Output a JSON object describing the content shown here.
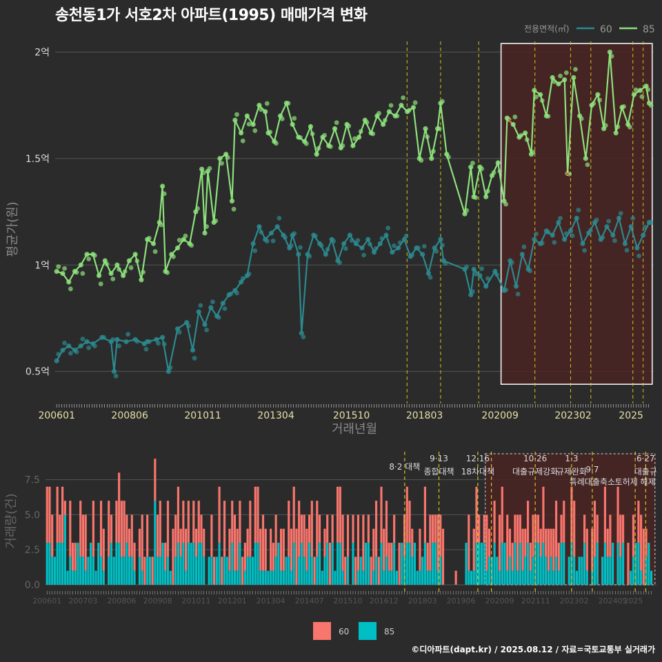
{
  "page": {
    "title": "송천동1가 서호2차 아파트(1995) 매매가격 변화",
    "credit": "©디아파트(dapt.kr) / 2025.08.12 / 자료=국토교통부 실거래가"
  },
  "colors": {
    "bg": "#2b2b2b",
    "grid": "#555555",
    "s60_line": "#2c8a8f",
    "s85_line": "#8ee27d",
    "vol60": "#f8766d",
    "vol85": "#00bfc4",
    "policy": "#d8c21a",
    "highlight_fill": "#4a2323",
    "axis_text": "#dddddd",
    "axis_title": "#888888"
  },
  "chart_data": [
    {
      "type": "line",
      "xlabel": "거래년월",
      "ylabel": "평균가(원)",
      "x_ticks": [
        "200601",
        "200806",
        "201011",
        "201304",
        "201510",
        "201803",
        "202009",
        "202302",
        "2025"
      ],
      "y_ticks": [
        {
          "value": 0.5,
          "label": "0.5억"
        },
        {
          "value": 1.0,
          "label": "1억"
        },
        {
          "value": 1.5,
          "label": "1.5억"
        },
        {
          "value": 2.0,
          "label": "2억"
        }
      ],
      "ylim": [
        0.35,
        2.05
      ],
      "x_range": [
        2005.95,
        2025.75
      ],
      "legend": {
        "title": "전용면적(㎡)",
        "position": "top-right"
      },
      "highlight_range": [
        2020.7,
        2025.7
      ],
      "policy_lines": [
        2017.59,
        2018.7,
        2019.96,
        2021.82,
        2023.0,
        2023.67,
        2025.06,
        2025.4
      ],
      "series": [
        {
          "name": "60",
          "points": [
            [
              2006.0,
              0.55
            ],
            [
              2006.2,
              0.6
            ],
            [
              2006.4,
              0.62
            ],
            [
              2006.6,
              0.6
            ],
            [
              2006.8,
              0.62
            ],
            [
              2007.0,
              0.64
            ],
            [
              2007.2,
              0.63
            ],
            [
              2007.5,
              0.66
            ],
            [
              2007.8,
              0.64
            ],
            [
              2007.9,
              0.5
            ],
            [
              2008.0,
              0.65
            ],
            [
              2008.3,
              0.64
            ],
            [
              2008.6,
              0.65
            ],
            [
              2008.9,
              0.63
            ],
            [
              2009.0,
              0.64
            ],
            [
              2009.3,
              0.65
            ],
            [
              2009.5,
              0.66
            ],
            [
              2009.7,
              0.5
            ],
            [
              2010.0,
              0.7
            ],
            [
              2010.3,
              0.73
            ],
            [
              2010.5,
              0.6
            ],
            [
              2010.7,
              0.78
            ],
            [
              2010.9,
              0.72
            ],
            [
              2011.1,
              0.8
            ],
            [
              2011.3,
              0.76
            ],
            [
              2011.5,
              0.82
            ],
            [
              2011.7,
              0.86
            ],
            [
              2011.9,
              0.88
            ],
            [
              2012.1,
              0.92
            ],
            [
              2012.3,
              0.95
            ],
            [
              2012.5,
              1.1
            ],
            [
              2012.7,
              1.18
            ],
            [
              2012.9,
              1.12
            ],
            [
              2013.1,
              1.15
            ],
            [
              2013.3,
              1.18
            ],
            [
              2013.5,
              1.14
            ],
            [
              2013.7,
              1.08
            ],
            [
              2013.8,
              1.14
            ],
            [
              2014.0,
              1.05
            ],
            [
              2014.1,
              0.68
            ],
            [
              2014.3,
              1.05
            ],
            [
              2014.5,
              1.14
            ],
            [
              2014.7,
              1.1
            ],
            [
              2014.9,
              1.05
            ],
            [
              2015.1,
              1.12
            ],
            [
              2015.3,
              1.02
            ],
            [
              2015.5,
              1.1
            ],
            [
              2015.7,
              1.14
            ],
            [
              2015.9,
              1.1
            ],
            [
              2016.1,
              1.08
            ],
            [
              2016.3,
              1.12
            ],
            [
              2016.5,
              1.06
            ],
            [
              2016.7,
              1.1
            ],
            [
              2016.9,
              1.14
            ],
            [
              2017.1,
              1.06
            ],
            [
              2017.3,
              1.08
            ],
            [
              2017.5,
              1.12
            ],
            [
              2017.7,
              1.04
            ],
            [
              2017.9,
              1.08
            ],
            [
              2018.1,
              1.05
            ],
            [
              2018.3,
              0.96
            ],
            [
              2018.5,
              1.08
            ],
            [
              2018.7,
              1.12
            ],
            [
              2018.8,
              1.02
            ],
            [
              2019.5,
              0.98
            ],
            [
              2019.7,
              0.86
            ],
            [
              2019.8,
              0.98
            ],
            [
              2020.0,
              0.95
            ],
            [
              2020.2,
              0.9
            ],
            [
              2020.5,
              0.97
            ],
            [
              2020.8,
              0.88
            ],
            [
              2021.0,
              1.02
            ],
            [
              2021.2,
              0.9
            ],
            [
              2021.4,
              1.05
            ],
            [
              2021.6,
              0.98
            ],
            [
              2021.8,
              1.12
            ],
            [
              2022.0,
              1.1
            ],
            [
              2022.2,
              1.16
            ],
            [
              2022.4,
              1.14
            ],
            [
              2022.6,
              1.2
            ],
            [
              2022.8,
              1.12
            ],
            [
              2023.0,
              1.16
            ],
            [
              2023.2,
              1.22
            ],
            [
              2023.4,
              1.1
            ],
            [
              2023.6,
              1.15
            ],
            [
              2023.8,
              1.2
            ],
            [
              2024.0,
              1.12
            ],
            [
              2024.2,
              1.18
            ],
            [
              2024.4,
              1.14
            ],
            [
              2024.6,
              1.22
            ],
            [
              2024.8,
              1.1
            ],
            [
              2025.0,
              1.18
            ],
            [
              2025.2,
              1.08
            ],
            [
              2025.4,
              1.14
            ],
            [
              2025.6,
              1.2
            ]
          ]
        },
        {
          "name": "85",
          "points": [
            [
              2006.0,
              0.97
            ],
            [
              2006.2,
              0.96
            ],
            [
              2006.4,
              0.92
            ],
            [
              2006.6,
              0.97
            ],
            [
              2006.8,
              1.0
            ],
            [
              2007.0,
              1.05
            ],
            [
              2007.2,
              1.05
            ],
            [
              2007.4,
              0.95
            ],
            [
              2007.6,
              1.02
            ],
            [
              2007.8,
              0.96
            ],
            [
              2008.0,
              1.0
            ],
            [
              2008.2,
              0.95
            ],
            [
              2008.4,
              1.02
            ],
            [
              2008.6,
              1.05
            ],
            [
              2008.8,
              0.93
            ],
            [
              2009.0,
              1.12
            ],
            [
              2009.2,
              1.1
            ],
            [
              2009.4,
              1.2
            ],
            [
              2009.5,
              1.37
            ],
            [
              2009.6,
              0.97
            ],
            [
              2009.8,
              1.05
            ],
            [
              2010.0,
              1.08
            ],
            [
              2010.2,
              1.12
            ],
            [
              2010.4,
              1.1
            ],
            [
              2010.6,
              1.25
            ],
            [
              2010.8,
              1.45
            ],
            [
              2010.9,
              1.15
            ],
            [
              2011.0,
              1.44
            ],
            [
              2011.2,
              1.2
            ],
            [
              2011.4,
              1.5
            ],
            [
              2011.6,
              1.52
            ],
            [
              2011.8,
              1.3
            ],
            [
              2011.9,
              1.68
            ],
            [
              2012.1,
              1.62
            ],
            [
              2012.3,
              1.7
            ],
            [
              2012.5,
              1.66
            ],
            [
              2012.7,
              1.75
            ],
            [
              2012.9,
              1.72
            ],
            [
              2013.0,
              1.62
            ],
            [
              2013.2,
              1.58
            ],
            [
              2013.4,
              1.7
            ],
            [
              2013.6,
              1.76
            ],
            [
              2013.8,
              1.66
            ],
            [
              2014.0,
              1.6
            ],
            [
              2014.2,
              1.58
            ],
            [
              2014.4,
              1.65
            ],
            [
              2014.6,
              1.52
            ],
            [
              2014.8,
              1.6
            ],
            [
              2015.0,
              1.56
            ],
            [
              2015.2,
              1.64
            ],
            [
              2015.4,
              1.55
            ],
            [
              2015.6,
              1.66
            ],
            [
              2015.8,
              1.56
            ],
            [
              2016.0,
              1.6
            ],
            [
              2016.2,
              1.68
            ],
            [
              2016.4,
              1.62
            ],
            [
              2016.6,
              1.7
            ],
            [
              2016.8,
              1.66
            ],
            [
              2017.0,
              1.72
            ],
            [
              2017.2,
              1.7
            ],
            [
              2017.4,
              1.75
            ],
            [
              2017.6,
              1.72
            ],
            [
              2017.8,
              1.74
            ],
            [
              2018.0,
              1.5
            ],
            [
              2018.2,
              1.64
            ],
            [
              2018.4,
              1.5
            ],
            [
              2018.6,
              1.64
            ],
            [
              2018.7,
              1.76
            ],
            [
              2018.9,
              1.52
            ],
            [
              2019.5,
              1.24
            ],
            [
              2019.7,
              1.46
            ],
            [
              2019.8,
              1.32
            ],
            [
              2020.0,
              1.46
            ],
            [
              2020.2,
              1.32
            ],
            [
              2020.4,
              1.42
            ],
            [
              2020.6,
              1.48
            ],
            [
              2020.8,
              1.3
            ],
            [
              2020.9,
              1.69
            ],
            [
              2021.1,
              1.66
            ],
            [
              2021.3,
              1.6
            ],
            [
              2021.5,
              1.62
            ],
            [
              2021.7,
              1.52
            ],
            [
              2021.8,
              1.82
            ],
            [
              2022.0,
              1.8
            ],
            [
              2022.2,
              1.7
            ],
            [
              2022.4,
              1.88
            ],
            [
              2022.6,
              1.85
            ],
            [
              2022.8,
              1.87
            ],
            [
              2022.9,
              1.43
            ],
            [
              2023.1,
              1.88
            ],
            [
              2023.3,
              1.7
            ],
            [
              2023.5,
              1.5
            ],
            [
              2023.7,
              1.75
            ],
            [
              2023.9,
              1.8
            ],
            [
              2024.1,
              1.64
            ],
            [
              2024.3,
              2.0
            ],
            [
              2024.5,
              1.62
            ],
            [
              2024.7,
              1.74
            ],
            [
              2024.9,
              1.66
            ],
            [
              2025.1,
              1.8
            ],
            [
              2025.3,
              1.82
            ],
            [
              2025.5,
              1.84
            ],
            [
              2025.6,
              1.76
            ]
          ]
        }
      ]
    },
    {
      "type": "bar",
      "xlabel": "",
      "ylabel": "거래량(건)",
      "x_ticks": [
        "200601",
        "200703",
        "200806",
        "200908",
        "201011",
        "201201",
        "201304",
        "201407",
        "201510",
        "201612",
        "201803",
        "201906",
        "202009",
        "202111",
        "202302",
        "202405",
        "2025"
      ],
      "y_ticks": [
        {
          "value": 0,
          "label": "0.0"
        },
        {
          "value": 2.5,
          "label": "2.5"
        },
        {
          "value": 5,
          "label": "5.0"
        },
        {
          "value": 7.5,
          "label": "7.5"
        }
      ],
      "ylim": [
        0,
        9.5
      ],
      "x_range": [
        2005.95,
        2025.75
      ],
      "legend": {
        "position": "bottom"
      },
      "highlight_range": [
        2020.2,
        2025.7
      ],
      "policy_lines": [
        2017.59,
        2018.7,
        2019.96,
        2020.4,
        2021.82,
        2023.0,
        2023.67,
        2025.06,
        2025.4
      ],
      "policy_labels": [
        {
          "x": 2017.59,
          "line1": "8·2",
          "line2": "대책",
          "inline": true
        },
        {
          "x": 2018.7,
          "line1": "9·13",
          "line2": "종합대책"
        },
        {
          "x": 2019.96,
          "line1": "12·16",
          "line2": "18차대책"
        },
        {
          "x": 2021.82,
          "line1": "10·26",
          "line2": "대출규제강화"
        },
        {
          "x": 2023.0,
          "line1": "1·3",
          "line2": "규제완화"
        },
        {
          "x": 2023.67,
          "line1": "9·7",
          "line2": "특례대출축소"
        },
        {
          "x": 2025.06,
          "line1": "",
          "line2": "토허제 해제"
        },
        {
          "x": 2025.4,
          "line1": "6·27",
          "line2": "대출규"
        }
      ],
      "series": [
        {
          "name": "60"
        },
        {
          "name": "85"
        }
      ]
    }
  ]
}
